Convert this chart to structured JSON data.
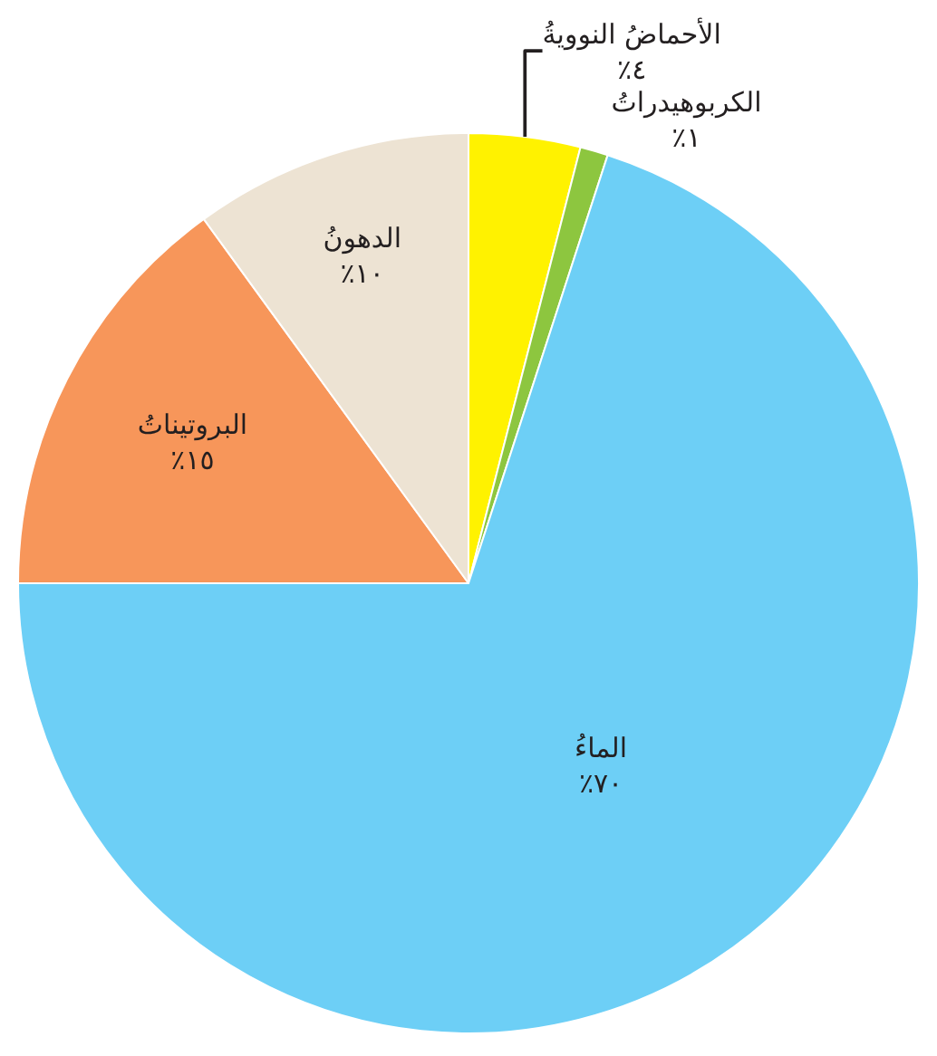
{
  "chart_data": {
    "type": "pie",
    "categories": [
      "الأحماضُ النوويةُ",
      "الكربوهيدراتُ",
      "الماءُ",
      "البروتيناتُ",
      "الدهونُ"
    ],
    "values": [
      4,
      1,
      70,
      15,
      10
    ],
    "colors": [
      "#fff200",
      "#8dc63f",
      "#6dcff6",
      "#f7965a",
      "#ede3d3"
    ],
    "value_labels": [
      "٪٤",
      "٪١",
      "٪٧٠",
      "٪١٥",
      "٪١٠"
    ]
  }
}
